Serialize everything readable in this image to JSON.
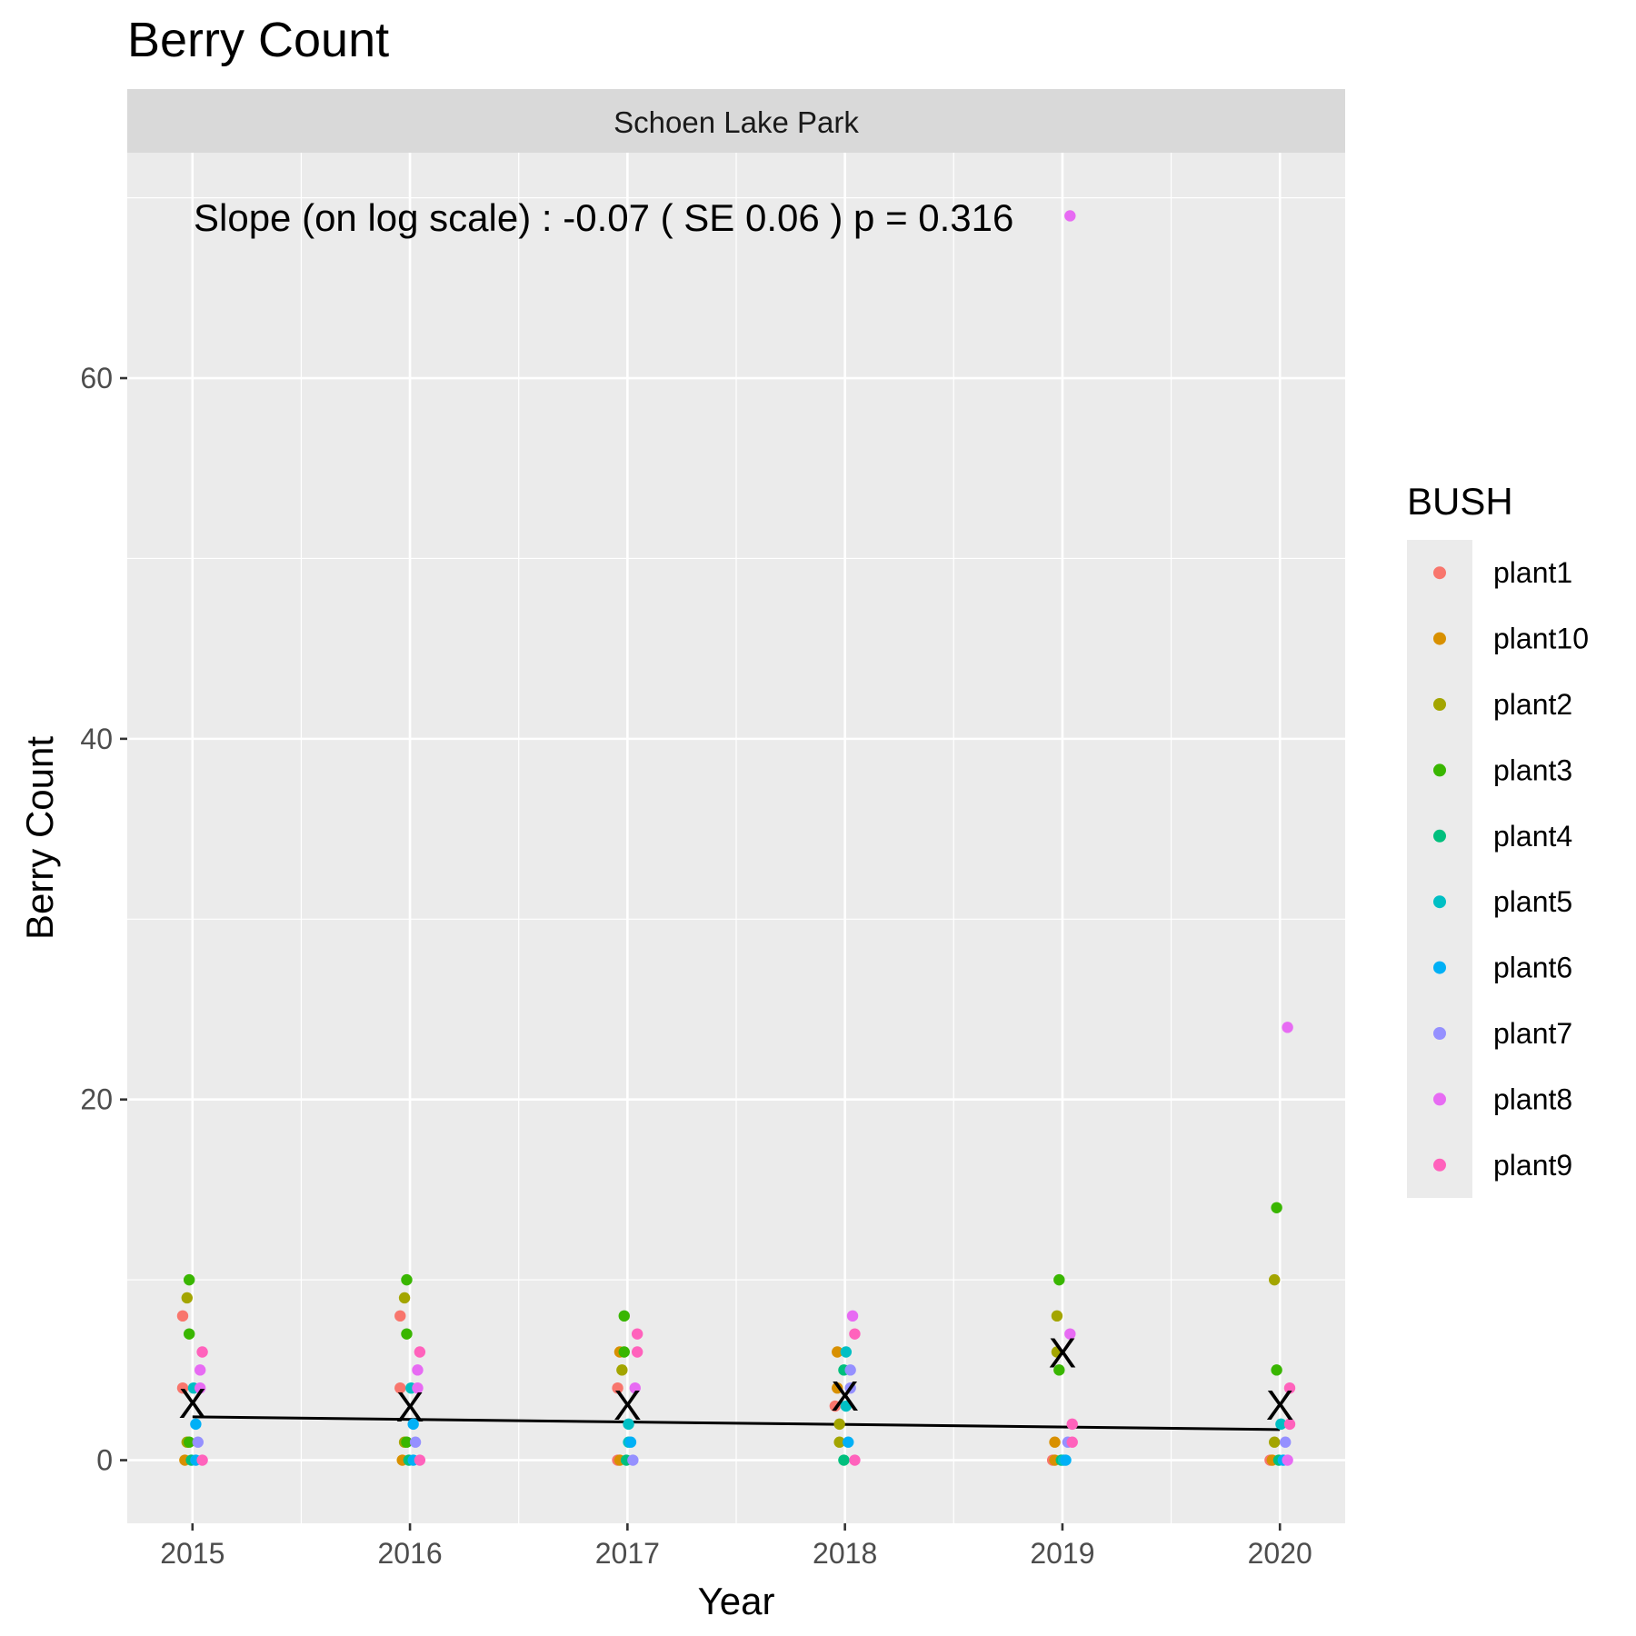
{
  "chart_data": {
    "type": "scatter",
    "title": "Berry Count",
    "facet": "Schoen Lake Park",
    "annotation": "Slope (on log scale) :  -0.07  ( SE  0.06 ) p = 0.316",
    "xlabel": "Year",
    "ylabel": "Berry Count",
    "x_ticks": [
      "2015",
      "2016",
      "2017",
      "2018",
      "2019",
      "2020"
    ],
    "y_ticks": [
      0,
      20,
      40,
      60
    ],
    "xlim": [
      2014.7,
      2020.3
    ],
    "ylim": [
      -3.5,
      72.5
    ],
    "grid": true,
    "legend": {
      "title": "BUSH",
      "position": "right"
    },
    "series": [
      {
        "name": "plant1",
        "color": "#F8766D",
        "points": [
          [
            2015,
            8
          ],
          [
            2015,
            4
          ],
          [
            2016,
            8
          ],
          [
            2016,
            4
          ],
          [
            2017,
            4
          ],
          [
            2017,
            0
          ],
          [
            2018,
            3
          ],
          [
            2019,
            0
          ],
          [
            2020,
            0
          ]
        ]
      },
      {
        "name": "plant10",
        "color": "#D89000",
        "points": [
          [
            2015,
            0
          ],
          [
            2016,
            0
          ],
          [
            2017,
            6
          ],
          [
            2017,
            0
          ],
          [
            2018,
            6
          ],
          [
            2018,
            4
          ],
          [
            2019,
            1
          ],
          [
            2019,
            0
          ],
          [
            2020,
            0
          ]
        ]
      },
      {
        "name": "plant2",
        "color": "#A3A500",
        "points": [
          [
            2015,
            9
          ],
          [
            2015,
            1
          ],
          [
            2016,
            9
          ],
          [
            2016,
            1
          ],
          [
            2017,
            5
          ],
          [
            2018,
            2
          ],
          [
            2018,
            1
          ],
          [
            2019,
            8
          ],
          [
            2019,
            6
          ],
          [
            2020,
            10
          ],
          [
            2020,
            1
          ]
        ]
      },
      {
        "name": "plant3",
        "color": "#39B600",
        "points": [
          [
            2015,
            10
          ],
          [
            2015,
            7
          ],
          [
            2015,
            1
          ],
          [
            2016,
            10
          ],
          [
            2016,
            7
          ],
          [
            2016,
            1
          ],
          [
            2017,
            8
          ],
          [
            2017,
            6
          ],
          [
            2019,
            10
          ],
          [
            2019,
            5
          ],
          [
            2020,
            14
          ],
          [
            2020,
            5
          ]
        ]
      },
      {
        "name": "plant4",
        "color": "#00BF7D",
        "points": [
          [
            2015,
            0
          ],
          [
            2016,
            0
          ],
          [
            2017,
            0
          ],
          [
            2018,
            5
          ],
          [
            2018,
            0
          ],
          [
            2019,
            0
          ],
          [
            2020,
            0
          ]
        ]
      },
      {
        "name": "plant5",
        "color": "#00BFC4",
        "points": [
          [
            2015,
            4
          ],
          [
            2016,
            4
          ],
          [
            2017,
            2
          ],
          [
            2017,
            1
          ],
          [
            2018,
            6
          ],
          [
            2018,
            3
          ],
          [
            2019,
            0
          ],
          [
            2020,
            2
          ]
        ]
      },
      {
        "name": "plant6",
        "color": "#00B0F6",
        "points": [
          [
            2015,
            2
          ],
          [
            2015,
            0
          ],
          [
            2016,
            2
          ],
          [
            2016,
            0
          ],
          [
            2017,
            1
          ],
          [
            2018,
            1
          ],
          [
            2019,
            0
          ],
          [
            2020,
            0
          ]
        ]
      },
      {
        "name": "plant7",
        "color": "#9590FF",
        "points": [
          [
            2015,
            1
          ],
          [
            2016,
            1
          ],
          [
            2017,
            0
          ],
          [
            2018,
            5
          ],
          [
            2018,
            4
          ],
          [
            2019,
            1
          ],
          [
            2020,
            1
          ]
        ]
      },
      {
        "name": "plant8",
        "color": "#E76BF3",
        "points": [
          [
            2015,
            5
          ],
          [
            2015,
            4
          ],
          [
            2016,
            5
          ],
          [
            2016,
            4
          ],
          [
            2017,
            4
          ],
          [
            2018,
            8
          ],
          [
            2019,
            69
          ],
          [
            2019,
            7
          ],
          [
            2020,
            24
          ],
          [
            2020,
            0
          ]
        ]
      },
      {
        "name": "plant9",
        "color": "#FF62BC",
        "points": [
          [
            2015,
            6
          ],
          [
            2015,
            0
          ],
          [
            2016,
            6
          ],
          [
            2016,
            0
          ],
          [
            2017,
            7
          ],
          [
            2017,
            6
          ],
          [
            2018,
            7
          ],
          [
            2018,
            0
          ],
          [
            2019,
            2
          ],
          [
            2019,
            1
          ],
          [
            2020,
            4
          ],
          [
            2020,
            2
          ]
        ]
      }
    ],
    "means": {
      "marker": "X",
      "points": [
        [
          2015,
          3.2
        ],
        [
          2016,
          3.0
        ],
        [
          2017,
          3.1
        ],
        [
          2018,
          3.6
        ],
        [
          2019,
          6.0
        ],
        [
          2020,
          3.1
        ]
      ]
    },
    "trend_line": {
      "color": "#000000",
      "points": [
        [
          2015,
          2.4
        ],
        [
          2020,
          1.7
        ]
      ]
    }
  }
}
